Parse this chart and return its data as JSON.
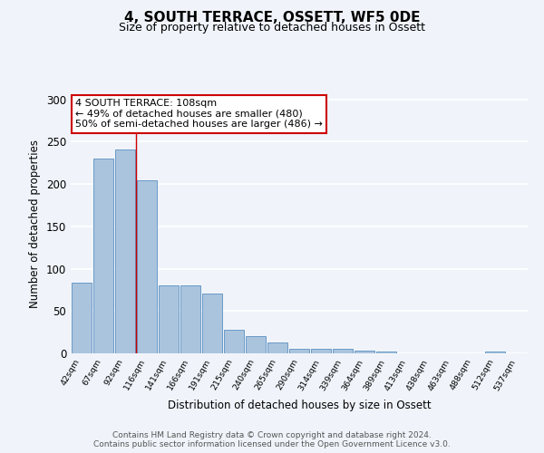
{
  "title": "4, SOUTH TERRACE, OSSETT, WF5 0DE",
  "subtitle": "Size of property relative to detached houses in Ossett",
  "xlabel": "Distribution of detached houses by size in Ossett",
  "ylabel": "Number of detached properties",
  "bar_labels": [
    "42sqm",
    "67sqm",
    "92sqm",
    "116sqm",
    "141sqm",
    "166sqm",
    "191sqm",
    "215sqm",
    "240sqm",
    "265sqm",
    "290sqm",
    "314sqm",
    "339sqm",
    "364sqm",
    "389sqm",
    "413sqm",
    "438sqm",
    "463sqm",
    "488sqm",
    "512sqm",
    "537sqm"
  ],
  "bar_values": [
    83,
    230,
    241,
    204,
    80,
    80,
    71,
    28,
    20,
    13,
    5,
    5,
    5,
    3,
    2,
    0,
    0,
    0,
    0,
    2,
    0
  ],
  "bar_color": "#aac4de",
  "bar_edge_color": "#5a8fc0",
  "background_color": "#f0f4fa",
  "grid_color": "#ffffff",
  "ylim": [
    0,
    305
  ],
  "yticks": [
    0,
    50,
    100,
    150,
    200,
    250,
    300
  ],
  "vline_x": 2.5,
  "vline_color": "#cc0000",
  "annotation_text": "4 SOUTH TERRACE: 108sqm\n← 49% of detached houses are smaller (480)\n50% of semi-detached houses are larger (486) →",
  "annotation_box_color": "#ffffff",
  "annotation_box_edge": "#cc0000",
  "footer_text": "Contains HM Land Registry data © Crown copyright and database right 2024.\nContains public sector information licensed under the Open Government Licence v3.0.",
  "title_fontsize": 11,
  "subtitle_fontsize": 9,
  "annotation_fontsize": 8,
  "footer_fontsize": 6.5
}
